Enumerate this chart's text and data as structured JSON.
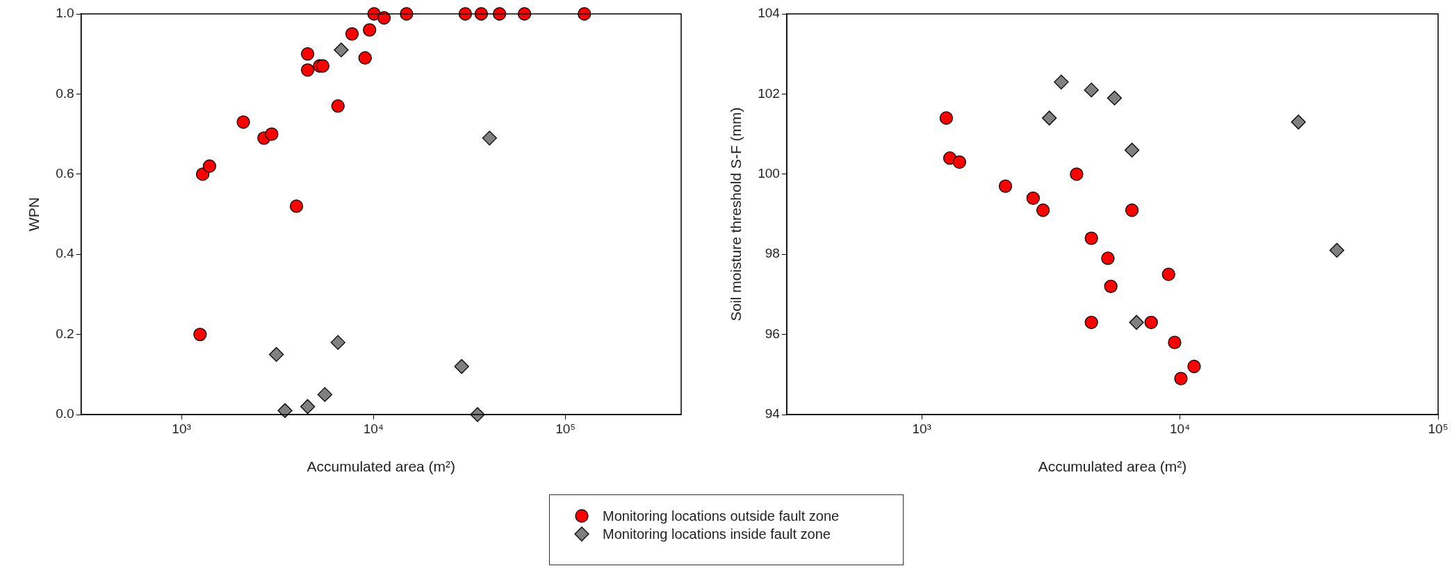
{
  "chart_data": [
    {
      "type": "scatter",
      "xlabel": "Accumulated area (m²)",
      "ylabel": "WPN",
      "log": "x",
      "grid": false,
      "legend": "bottom",
      "xlim": [
        300,
        400000
      ],
      "xticks": [
        {
          "value": 1000,
          "label": "10³"
        },
        {
          "value": 10000,
          "label": "10⁴"
        },
        {
          "value": 100000,
          "label": "10⁵"
        }
      ],
      "ylim": [
        0,
        1
      ],
      "yticks": [
        {
          "value": 0,
          "label": "0.0"
        },
        {
          "value": 0.2,
          "label": "0.2"
        },
        {
          "value": 0.4,
          "label": "0.4"
        },
        {
          "value": 0.6,
          "label": "0.6"
        },
        {
          "value": 0.8,
          "label": "0.8"
        },
        {
          "value": 1,
          "label": "1.0"
        }
      ],
      "series": [
        {
          "name": "Monitoring locations outside fault zone",
          "color": "#ff0000",
          "marker": "circle",
          "x": [
            1250,
            1290,
            1400,
            2100,
            2690,
            2950,
            3970,
            4540,
            4540,
            5240,
            5440,
            6530,
            7730,
            9040,
            9540,
            10070,
            11350,
            14860,
            30060,
            36400,
            45300,
            61100,
            125300
          ],
          "values": [
            0.2,
            0.6,
            0.62,
            0.73,
            0.69,
            0.7,
            0.52,
            0.9,
            0.86,
            0.87,
            0.87,
            0.77,
            0.95,
            0.89,
            0.96,
            1.0,
            0.99,
            1.0,
            1.0,
            1.0,
            1.0,
            1.0,
            1.0
          ]
        },
        {
          "name": "Monitoring locations inside fault zone",
          "color": "#808080",
          "marker": "diamond",
          "x": [
            3120,
            3460,
            4540,
            5580,
            6530,
            6790,
            28770,
            34800,
            40200
          ],
          "values": [
            0.15,
            0.01,
            0.02,
            0.05,
            0.18,
            0.91,
            0.12,
            0.0,
            0.69
          ]
        }
      ]
    },
    {
      "type": "scatter",
      "xlabel": "Accumulated area (m²)",
      "ylabel": "Soil moisture threshold S-F (mm)",
      "log": "x",
      "grid": false,
      "xlim": [
        300,
        100000
      ],
      "xticks": [
        {
          "value": 1000,
          "label": "10³"
        },
        {
          "value": 10000,
          "label": "10⁴"
        },
        {
          "value": 100000,
          "label": "10⁵"
        }
      ],
      "ylim": [
        94,
        104
      ],
      "yticks": [
        94,
        96,
        98,
        100,
        102,
        104
      ],
      "series": [
        {
          "color": "#ff0000",
          "marker": "circle",
          "x": [
            1245,
            1285,
            1400,
            2110,
            2700,
            2950,
            3980,
            4540,
            4540,
            5260,
            5400,
            6520,
            7740,
            9040,
            9540,
            10090,
            11350
          ],
          "values": [
            101.4,
            100.4,
            100.3,
            99.7,
            99.4,
            99.1,
            100.0,
            98.4,
            96.3,
            97.9,
            97.2,
            99.1,
            96.3,
            97.5,
            95.8,
            94.9,
            95.2
          ]
        },
        {
          "color": "#808080",
          "marker": "diamond",
          "x": [
            3120,
            3470,
            4540,
            5580,
            6520,
            6790,
            28770,
            40540
          ],
          "values": [
            101.4,
            102.3,
            102.1,
            101.9,
            100.6,
            96.3,
            101.3,
            98.1
          ]
        }
      ]
    }
  ]
}
